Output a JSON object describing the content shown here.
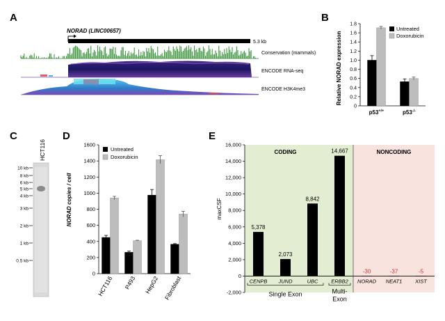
{
  "panels": {
    "a": "A",
    "b": "B",
    "c": "C",
    "d": "D",
    "e": "E"
  },
  "panel_a": {
    "gene_label": "NORAD (LINC00657)",
    "length_label": "5.3 kb",
    "track_conservation": "Conservation (mammals)",
    "track_rnaseq": "ENCODE RNA-seq",
    "track_h3k4me3": "ENCODE H3K4me3",
    "colors": {
      "conservation": "#2e8b2e",
      "rnaseq_dark": "#1a1a6e",
      "rnaseq_mid": "#5b2a8c",
      "h3k4": "#3aa0d8"
    }
  },
  "panel_c": {
    "lane_label": "HCT116",
    "markers": [
      "10 kb",
      "8 kb",
      "6 kb",
      "5 kb",
      "4 kb",
      "3 kb",
      "2 kb",
      "1 kb",
      "0.5 kb"
    ]
  },
  "chart_data": [
    {
      "id": "b",
      "type": "bar",
      "categories": [
        "p53+/+",
        "p53-/-"
      ],
      "series": [
        {
          "name": "Untreated",
          "color": "#000000",
          "values": [
            1.0,
            0.53
          ],
          "errors": [
            0.1,
            0.06
          ]
        },
        {
          "name": "Doxorubicin",
          "color": "#bdbdbd",
          "values": [
            1.71,
            0.6
          ],
          "errors": [
            0.03,
            0.03
          ]
        }
      ],
      "ylabel": "Relative NORAD expression",
      "ylim": [
        0,
        1.8
      ],
      "yticks": [
        "0",
        "0.2",
        "0.4",
        "0.6",
        "0.8",
        "1.0",
        "1.2",
        "1.4",
        "1.6",
        "1.8"
      ]
    },
    {
      "id": "d",
      "type": "bar",
      "categories": [
        "HCT116",
        "P493",
        "HepG2",
        "Fibroblast"
      ],
      "series": [
        {
          "name": "Untreated",
          "color": "#000000",
          "values": [
            450,
            265,
            975,
            365
          ],
          "errors": [
            25,
            15,
            70,
            8
          ]
        },
        {
          "name": "Doxorubicin",
          "color": "#bdbdbd",
          "values": [
            940,
            410,
            1415,
            740
          ],
          "errors": [
            20,
            5,
            50,
            35
          ]
        }
      ],
      "ylabel": "NORAD copies / cell",
      "ylim": [
        0,
        1600
      ],
      "yticks": [
        "0",
        "200",
        "400",
        "600",
        "800",
        "1000",
        "1200",
        "1400",
        "1600"
      ]
    },
    {
      "id": "e",
      "type": "bar",
      "categories": [
        "CENPB",
        "JUND",
        "UBC",
        "ERBB2",
        "NORAD",
        "NEAT1",
        "XIST"
      ],
      "values": [
        5378,
        2073,
        8842,
        14667,
        -30,
        -37,
        -5
      ],
      "value_labels": [
        "5,378",
        "2,073",
        "8,842",
        "14,667",
        "-30",
        "-37",
        "-5"
      ],
      "ylabel": "maxCSF",
      "ylim": [
        -2000,
        16000
      ],
      "yticks": [
        "-2,000",
        "0",
        "2,000",
        "4,000",
        "6,000",
        "8,000",
        "10,000",
        "12,000",
        "14,000",
        "16,000"
      ],
      "regions": {
        "coding": "CODING",
        "noncoding": "NONCODING"
      },
      "groups": [
        "Single Exon",
        "Multi-",
        "Exon"
      ],
      "colors": {
        "coding_bg": "#e3edd2",
        "noncoding_bg": "#f8e3df",
        "negative_label": "#d9302c"
      }
    }
  ]
}
